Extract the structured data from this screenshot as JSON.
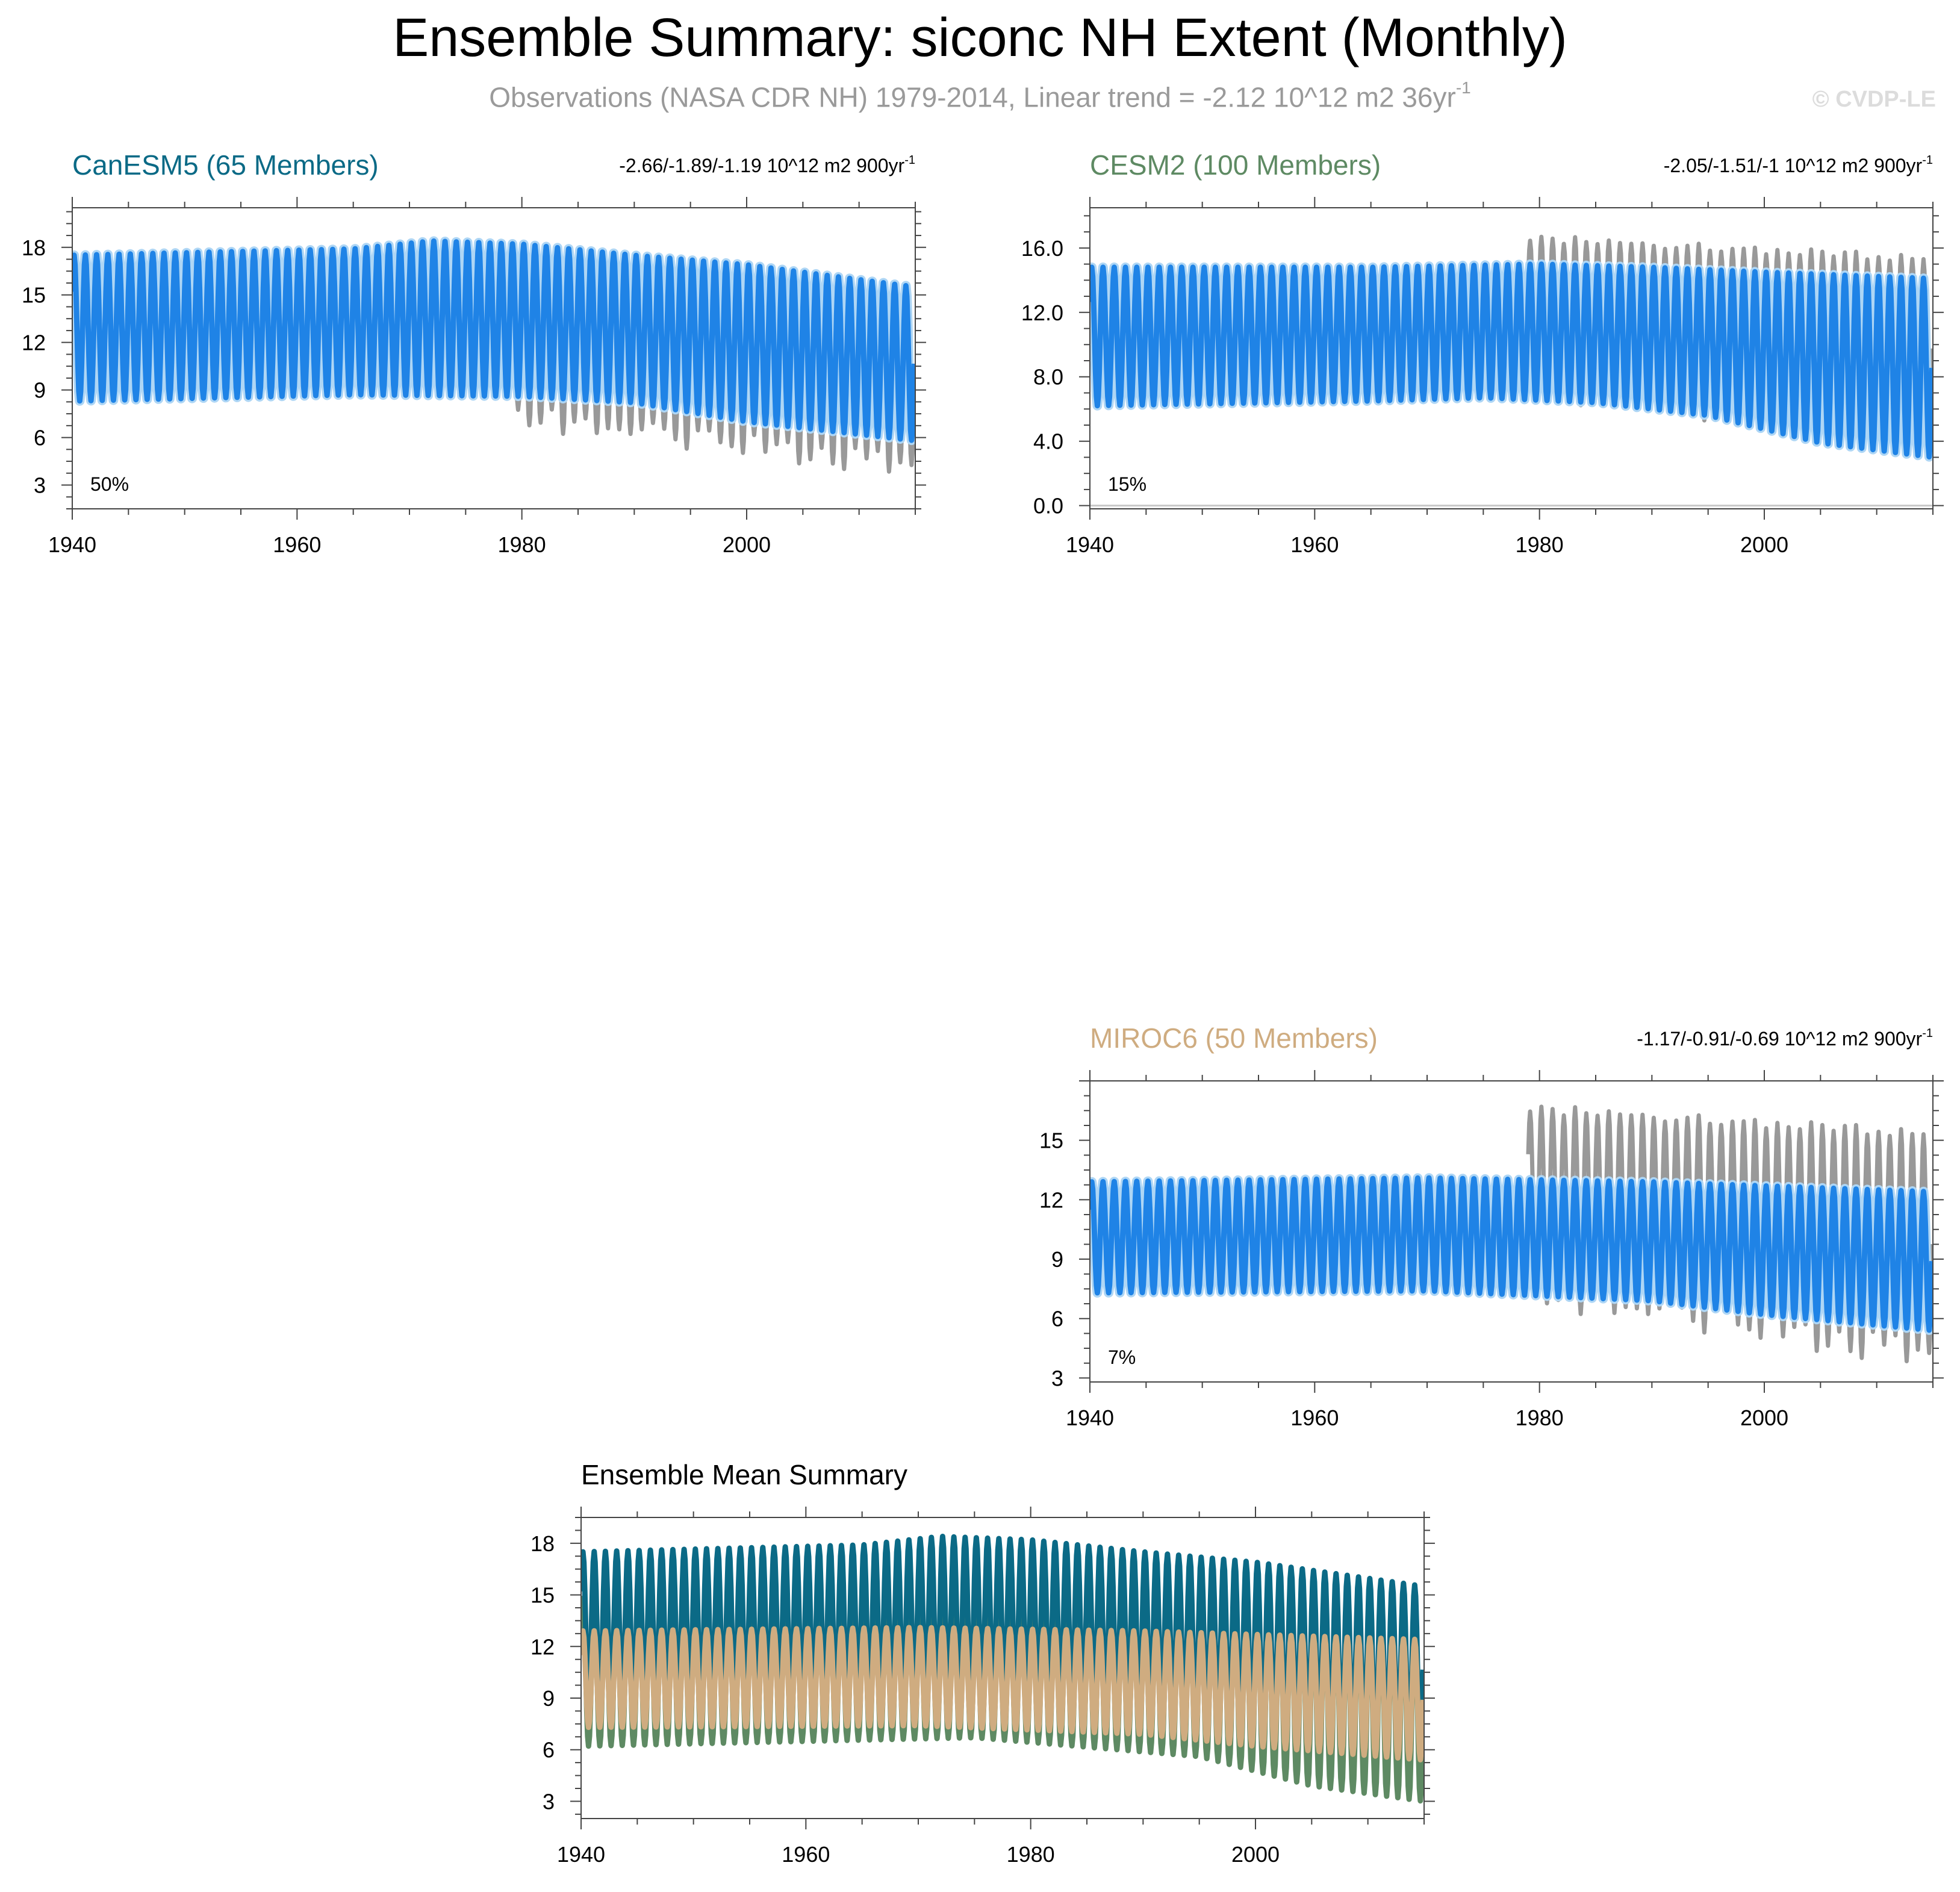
{
  "title": "Ensemble Summary: siconc NH Extent (Monthly)",
  "subtitle": {
    "text": "Observations (NASA CDR NH) 1979-2014, Linear trend = -2.12 10^12 m2 36yr",
    "exponent": "-1"
  },
  "watermark": "© CVDP-LE",
  "colors": {
    "observations": "#999999",
    "spread": "#aed6f5",
    "ensemble_mean": "#1f83e6",
    "CanESM5": "#0b6a86",
    "CESM2": "#5e8a63",
    "MIROC6": "#cfac80"
  },
  "chart_data": [
    {
      "type": "line",
      "id": "canesm5",
      "title": "CanESM5 (65 Members)",
      "title_color": "#0b6a86",
      "trend_text": "-2.66/-1.89/-1.19 10^12 m2 900yr",
      "trend_exponent": "-1",
      "percent_label": "50%",
      "xlim": [
        1940,
        2015
      ],
      "x_ticks": [
        "1940",
        "1960",
        "1980",
        "2000"
      ],
      "ylim": [
        1.5,
        20.5
      ],
      "y_ticks": [
        "3",
        "6",
        "9",
        "12",
        "15",
        "18"
      ],
      "series": [
        {
          "name": "Observations",
          "start_year": 1979,
          "end_year": 2015,
          "max_start": 16.5,
          "max_end": 15.2,
          "min_start": 7.6,
          "min_end": 4.4,
          "role": "observations"
        },
        {
          "name": "CanESM5 ensemble mean",
          "start_year": 1940,
          "end_year": 2015,
          "max_points": [
            [
              1940,
              17.5
            ],
            [
              1965,
              17.9
            ],
            [
              1972,
              18.4
            ],
            [
              1980,
              18.2
            ],
            [
              1990,
              17.5
            ],
            [
              2000,
              16.9
            ],
            [
              2015,
              15.5
            ]
          ],
          "min_points": [
            [
              1940,
              8.3
            ],
            [
              1965,
              8.7
            ],
            [
              1980,
              8.6
            ],
            [
              1990,
              8.2
            ],
            [
              2000,
              7.0
            ],
            [
              2015,
              5.8
            ]
          ],
          "role": "ensemble_mean"
        }
      ]
    },
    {
      "type": "line",
      "id": "cesm2",
      "title": "CESM2 (100 Members)",
      "title_color": "#5e8a63",
      "trend_text": "-2.05/-1.51/-1 10^12 m2 900yr",
      "trend_exponent": "-1",
      "percent_label": "15%",
      "xlim": [
        1940,
        2015
      ],
      "x_ticks": [
        "1940",
        "1960",
        "1980",
        "2000"
      ],
      "ylim": [
        -0.2,
        18.5
      ],
      "y_ticks": [
        "0.0",
        "4.0",
        "8.0",
        "12.0",
        "16.0"
      ],
      "series": [
        {
          "name": "Observations",
          "start_year": 1979,
          "end_year": 2015,
          "max_start": 16.6,
          "max_end": 15.3,
          "min_start": 7.6,
          "min_end": 4.4,
          "role": "observations"
        },
        {
          "name": "CESM2 ensemble mean",
          "start_year": 1940,
          "end_year": 2015,
          "max_points": [
            [
              1940,
              14.8
            ],
            [
              1965,
              14.8
            ],
            [
              1980,
              15.0
            ],
            [
              1990,
              14.8
            ],
            [
              2000,
              14.5
            ],
            [
              2015,
              14.1
            ]
          ],
          "min_points": [
            [
              1940,
              6.2
            ],
            [
              1965,
              6.5
            ],
            [
              1975,
              6.7
            ],
            [
              1985,
              6.4
            ],
            [
              1995,
              5.6
            ],
            [
              2005,
              3.9
            ],
            [
              2015,
              3.0
            ]
          ],
          "role": "ensemble_mean"
        }
      ]
    },
    {
      "type": "line",
      "id": "miroc6",
      "title": "MIROC6 (50 Members)",
      "title_color": "#cfac80",
      "trend_text": "-1.17/-0.91/-0.69 10^12 m2 900yr",
      "trend_exponent": "-1",
      "percent_label": "7%",
      "xlim": [
        1940,
        2015
      ],
      "x_ticks": [
        "1940",
        "1960",
        "1980",
        "2000"
      ],
      "ylim": [
        2.8,
        18.0
      ],
      "y_ticks": [
        "3",
        "6",
        "9",
        "12",
        "15"
      ],
      "series": [
        {
          "name": "Observations",
          "start_year": 1979,
          "end_year": 2015,
          "max_start": 16.6,
          "max_end": 15.3,
          "min_start": 7.6,
          "min_end": 4.4,
          "role": "observations"
        },
        {
          "name": "MIROC6 ensemble mean",
          "start_year": 1940,
          "end_year": 2015,
          "max_points": [
            [
              1940,
              12.9
            ],
            [
              1970,
              13.1
            ],
            [
              1990,
              12.9
            ],
            [
              2015,
              12.4
            ]
          ],
          "min_points": [
            [
              1940,
              7.3
            ],
            [
              1970,
              7.4
            ],
            [
              1990,
              6.9
            ],
            [
              2000,
              6.2
            ],
            [
              2015,
              5.4
            ]
          ],
          "role": "ensemble_mean"
        }
      ]
    },
    {
      "type": "line",
      "id": "ensemble-mean-summary",
      "title": "Ensemble Mean Summary",
      "title_color": "#000000",
      "xlim": [
        1940,
        2015
      ],
      "x_ticks": [
        "1940",
        "1960",
        "1980",
        "2000"
      ],
      "ylim": [
        2.0,
        19.5
      ],
      "y_ticks": [
        "3",
        "6",
        "9",
        "12",
        "15",
        "18"
      ],
      "series": [
        {
          "name": "CESM2",
          "start_year": 1940,
          "end_year": 2015,
          "max_points": [
            [
              1940,
              14.8
            ],
            [
              1980,
              15.0
            ],
            [
              2000,
              14.5
            ],
            [
              2015,
              14.1
            ]
          ],
          "min_points": [
            [
              1940,
              6.2
            ],
            [
              1975,
              6.7
            ],
            [
              1995,
              5.6
            ],
            [
              2005,
              3.9
            ],
            [
              2015,
              3.0
            ]
          ],
          "color_key": "CESM2"
        },
        {
          "name": "CanESM5",
          "start_year": 1940,
          "end_year": 2015,
          "max_points": [
            [
              1940,
              17.5
            ],
            [
              1965,
              17.9
            ],
            [
              1972,
              18.4
            ],
            [
              1980,
              18.2
            ],
            [
              1990,
              17.5
            ],
            [
              2000,
              16.9
            ],
            [
              2015,
              15.5
            ]
          ],
          "min_points": [
            [
              1940,
              8.3
            ],
            [
              1965,
              8.7
            ],
            [
              1980,
              8.6
            ],
            [
              1990,
              8.2
            ],
            [
              2000,
              7.0
            ],
            [
              2015,
              5.8
            ]
          ],
          "color_key": "CanESM5"
        },
        {
          "name": "MIROC6",
          "start_year": 1940,
          "end_year": 2015,
          "max_points": [
            [
              1940,
              12.9
            ],
            [
              1970,
              13.1
            ],
            [
              1990,
              12.9
            ],
            [
              2015,
              12.4
            ]
          ],
          "min_points": [
            [
              1940,
              7.3
            ],
            [
              1970,
              7.4
            ],
            [
              1990,
              6.9
            ],
            [
              2000,
              6.2
            ],
            [
              2015,
              5.4
            ]
          ],
          "color_key": "MIROC6"
        }
      ]
    }
  ]
}
